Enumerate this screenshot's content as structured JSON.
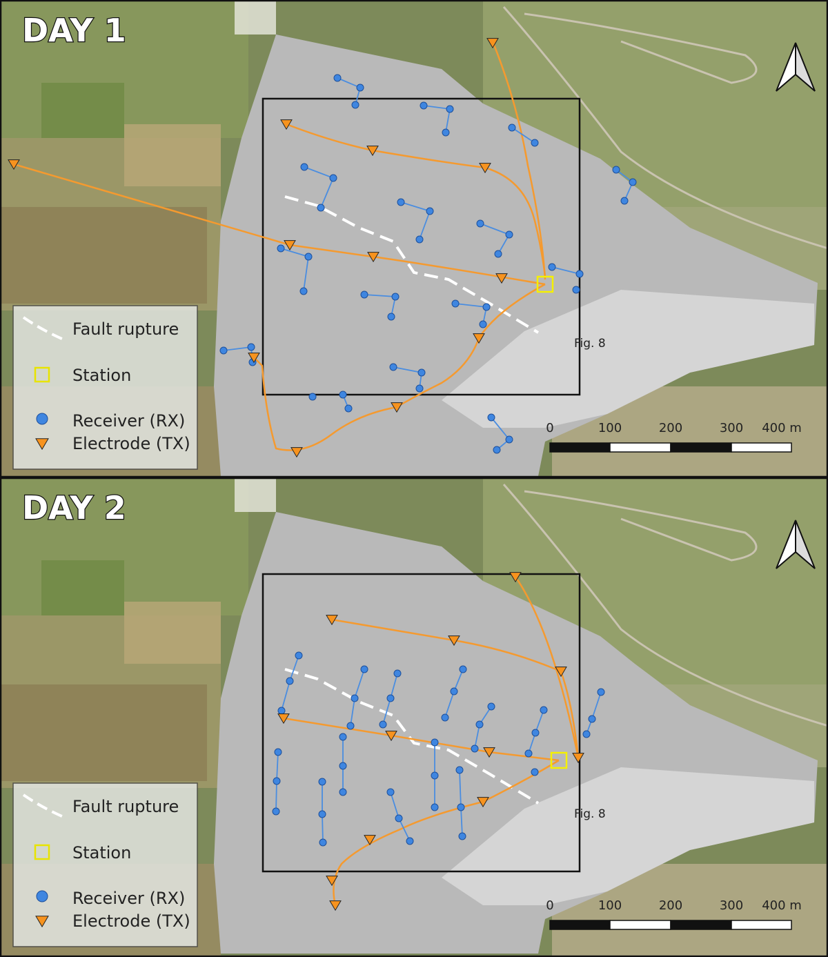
{
  "panels": [
    {
      "title": "DAY 1",
      "legend": [
        "Fault rupture",
        "Station",
        "Receiver (RX)",
        "Electrode (TX)"
      ],
      "scale_bar": [
        "0",
        "100",
        "200",
        "300",
        "400 m"
      ],
      "inset_label": "Fig. 8"
    },
    {
      "title": "DAY 2",
      "legend": [
        "Fault rupture",
        "Station",
        "Receiver (RX)",
        "Electrode (TX)"
      ],
      "scale_bar": [
        "0",
        "100",
        "200",
        "300",
        "400 m"
      ],
      "inset_label": "Fig. 8"
    }
  ]
}
